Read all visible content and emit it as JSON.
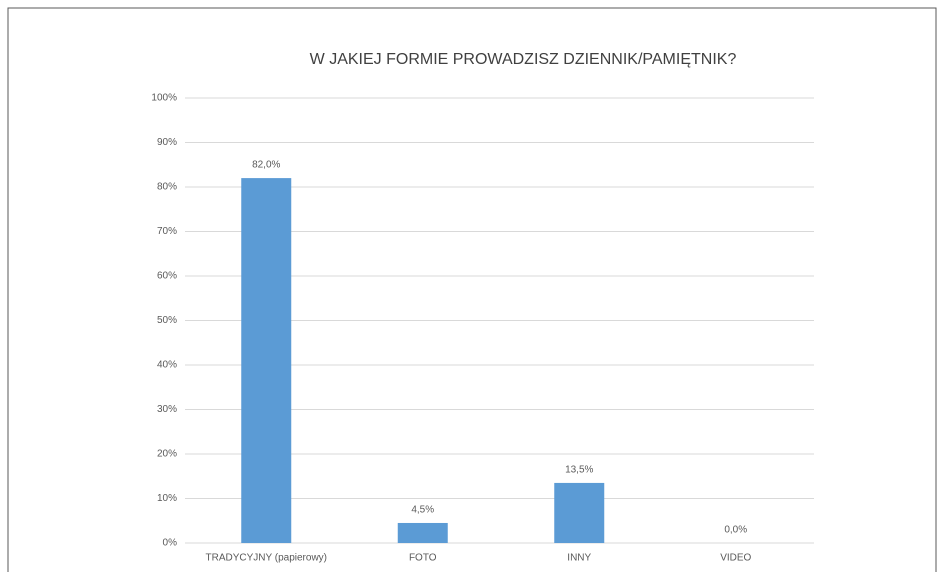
{
  "chart_data": {
    "type": "bar",
    "title": "W JAKIEJ FORMIE PROWADZISZ DZIENNIK/PAMIĘTNIK?",
    "categories": [
      "TRADYCYJNY (papierowy)",
      "FOTO",
      "INNY",
      "VIDEO"
    ],
    "values": [
      82,
      4.5,
      13.5,
      0
    ],
    "value_labels": [
      "82,0%",
      "4,5%",
      "13,5%",
      "0,0%"
    ],
    "color": "#5b9bd5",
    "ylim": [
      0,
      100
    ],
    "yticks": [
      {
        "value": 0,
        "label": "0%"
      },
      {
        "value": 10,
        "label": "10%"
      },
      {
        "value": 20,
        "label": "20%"
      },
      {
        "value": 30,
        "label": "30%"
      },
      {
        "value": 40,
        "label": "40%"
      },
      {
        "value": 50,
        "label": "50%"
      },
      {
        "value": 60,
        "label": "60%"
      },
      {
        "value": 70,
        "label": "70%"
      },
      {
        "value": 80,
        "label": "80%"
      },
      {
        "value": 90,
        "label": "90%"
      },
      {
        "value": 100,
        "label": "100%"
      }
    ],
    "grid": true
  }
}
